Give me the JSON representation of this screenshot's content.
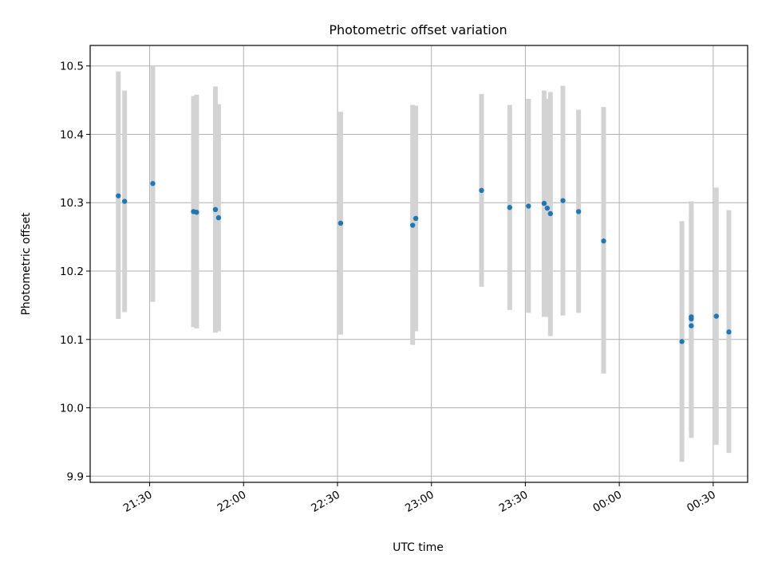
{
  "chart_data": {
    "type": "scatter",
    "title": "Photometric offset variation",
    "xlabel": "UTC time",
    "ylabel": "Photometric offset",
    "x_tick_labels": [
      "21:30",
      "22:00",
      "22:30",
      "23:00",
      "23:30",
      "00:00",
      "00:30"
    ],
    "y_tick_labels": [
      "9.9",
      "10.0",
      "10.1",
      "10.2",
      "10.3",
      "10.4",
      "10.5"
    ],
    "xlim": [
      "21:11",
      "00:41"
    ],
    "ylim": [
      9.891,
      10.53
    ],
    "grid": true,
    "point_color": "#1f77b4",
    "errorbar_color": "#d3d3d3",
    "points": [
      {
        "x": "21:20",
        "y": 10.31,
        "y_low": 10.13,
        "y_high": 10.492
      },
      {
        "x": "21:22",
        "y": 10.302,
        "y_low": 10.14,
        "y_high": 10.464
      },
      {
        "x": "21:31",
        "y": 10.328,
        "y_low": 10.155,
        "y_high": 10.5
      },
      {
        "x": "21:44",
        "y": 10.287,
        "y_low": 10.118,
        "y_high": 10.456
      },
      {
        "x": "21:45",
        "y": 10.286,
        "y_low": 10.116,
        "y_high": 10.458
      },
      {
        "x": "21:51",
        "y": 10.29,
        "y_low": 10.11,
        "y_high": 10.47
      },
      {
        "x": "21:52",
        "y": 10.278,
        "y_low": 10.112,
        "y_high": 10.444
      },
      {
        "x": "22:31",
        "y": 10.27,
        "y_low": 10.107,
        "y_high": 10.433
      },
      {
        "x": "22:54",
        "y": 10.267,
        "y_low": 10.092,
        "y_high": 10.443
      },
      {
        "x": "22:55",
        "y": 10.277,
        "y_low": 10.112,
        "y_high": 10.442
      },
      {
        "x": "23:16",
        "y": 10.318,
        "y_low": 10.177,
        "y_high": 10.459
      },
      {
        "x": "23:25",
        "y": 10.293,
        "y_low": 10.143,
        "y_high": 10.443
      },
      {
        "x": "23:31",
        "y": 10.295,
        "y_low": 10.139,
        "y_high": 10.452
      },
      {
        "x": "23:36",
        "y": 10.299,
        "y_low": 10.133,
        "y_high": 10.464
      },
      {
        "x": "23:37",
        "y": 10.292,
        "y_low": 10.133,
        "y_high": 10.452
      },
      {
        "x": "23:38",
        "y": 10.284,
        "y_low": 10.105,
        "y_high": 10.462
      },
      {
        "x": "23:42",
        "y": 10.303,
        "y_low": 10.135,
        "y_high": 10.471
      },
      {
        "x": "23:47",
        "y": 10.287,
        "y_low": 10.139,
        "y_high": 10.436
      },
      {
        "x": "23:55",
        "y": 10.244,
        "y_low": 10.05,
        "y_high": 10.44
      },
      {
        "x": "00:20",
        "y": 10.097,
        "y_low": 9.921,
        "y_high": 10.273
      },
      {
        "x": "00:23",
        "y": 10.133,
        "y_low": 9.964,
        "y_high": 10.302
      },
      {
        "x": "00:23",
        "y": 10.13,
        "y_low": 9.966,
        "y_high": 10.294
      },
      {
        "x": "00:23",
        "y": 10.12,
        "y_low": 9.956,
        "y_high": 10.284
      },
      {
        "x": "00:31",
        "y": 10.134,
        "y_low": 9.946,
        "y_high": 10.322
      },
      {
        "x": "00:35",
        "y": 10.111,
        "y_low": 9.934,
        "y_high": 10.289
      }
    ]
  }
}
